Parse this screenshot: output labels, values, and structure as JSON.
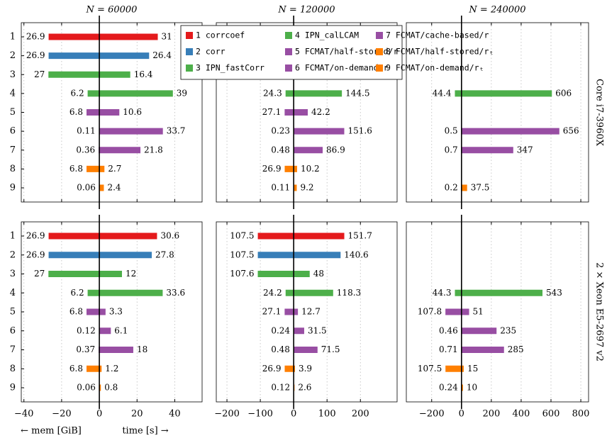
{
  "chart_data": [
    {
      "type": "bar",
      "title": "N = 60000",
      "categories": [
        "1",
        "2",
        "3",
        "4",
        "5",
        "6",
        "7",
        "8",
        "9"
      ],
      "series": [
        {
          "values": [
            -26.9,
            -26.9,
            -27,
            -6.2,
            -6.8,
            -0.11,
            -0.36,
            -6.8,
            -0.06
          ],
          "value_labels": [
            "26.9",
            "26.9",
            "27",
            "6.2",
            "6.8",
            "0.11",
            "0.36",
            "6.8",
            "0.06"
          ]
        },
        {
          "values": [
            31,
            26.4,
            16.4,
            39,
            10.6,
            33.7,
            21.8,
            2.7,
            2.4
          ]
        }
      ],
      "xlim": [
        -41.4,
        54.5
      ],
      "xticks": [
        -40,
        -20,
        0,
        20,
        40
      ]
    },
    {
      "type": "bar",
      "title": "N = 120000",
      "series": [
        {
          "values": [
            null,
            null,
            null,
            -24.3,
            -27.1,
            -0.23,
            -0.48,
            -26.9,
            -0.11
          ],
          "value_labels": [
            null,
            null,
            null,
            "24.3",
            "27.1",
            "0.23",
            "0.48",
            "26.9",
            "0.11"
          ]
        },
        {
          "values": [
            null,
            null,
            null,
            144.5,
            42.2,
            151.6,
            86.9,
            10.2,
            9.2
          ]
        }
      ],
      "xlim": [
        -232,
        310
      ],
      "xticks": [
        -200,
        -100,
        0,
        100,
        200
      ]
    },
    {
      "type": "bar",
      "title": "N = 240000",
      "row_label": "Core i7-3960X",
      "series": [
        {
          "values": [
            null,
            null,
            null,
            -44.4,
            null,
            -0.5,
            -0.7,
            null,
            -0.2
          ],
          "value_labels": [
            null,
            null,
            null,
            "44.4",
            null,
            "0.5",
            "0.7",
            null,
            "0.2"
          ]
        },
        {
          "values": [
            null,
            null,
            null,
            606,
            null,
            656,
            347,
            null,
            37.5
          ]
        }
      ],
      "xlim": [
        -370,
        852
      ],
      "xticks": [
        -200,
        0,
        200,
        400,
        600,
        800
      ]
    },
    {
      "type": "bar",
      "categories": [
        "1",
        "2",
        "3",
        "4",
        "5",
        "6",
        "7",
        "8",
        "9"
      ],
      "series": [
        {
          "values": [
            -26.9,
            -26.9,
            -27,
            -6.2,
            -6.8,
            -0.12,
            -0.37,
            -6.8,
            -0.06
          ],
          "value_labels": [
            "26.9",
            "26.9",
            "27",
            "6.2",
            "6.8",
            "0.12",
            "0.37",
            "6.8",
            "0.06"
          ]
        },
        {
          "values": [
            30.6,
            27.8,
            12,
            33.6,
            3.3,
            6.1,
            18,
            1.2,
            0.8
          ]
        }
      ],
      "xlim": [
        -41.4,
        54.5
      ],
      "xticks": [
        {
          "value": -40,
          "label": "−40"
        },
        {
          "value": -20,
          "label": "−20"
        },
        0,
        20,
        40
      ]
    },
    {
      "type": "bar",
      "series": [
        {
          "values": [
            -107.5,
            -107.5,
            -107.6,
            -24.2,
            -27.1,
            -0.24,
            -0.48,
            -26.9,
            -0.12
          ],
          "value_labels": [
            "107.5",
            "107.5",
            "107.6",
            "24.2",
            "27.1",
            "0.24",
            "0.48",
            "26.9",
            "0.12"
          ]
        },
        {
          "values": [
            151.7,
            140.6,
            48,
            118.3,
            12.7,
            31.5,
            71.5,
            3.9,
            2.6
          ]
        }
      ],
      "xlim": [
        -232,
        310
      ],
      "xticks": [
        {
          "value": -200,
          "label": "−200"
        },
        {
          "value": -100,
          "label": "−100"
        },
        0,
        100,
        200
      ]
    },
    {
      "type": "bar",
      "row_label": "2 × Xeon E5-2697 v2",
      "series": [
        {
          "values": [
            null,
            null,
            null,
            -44.3,
            -107.8,
            -0.46,
            -0.71,
            -107.5,
            -0.24
          ],
          "value_labels": [
            null,
            null,
            null,
            "44.3",
            "107.8",
            "0.46",
            "0.71",
            "107.5",
            "0.24"
          ]
        },
        {
          "values": [
            null,
            null,
            null,
            543,
            51,
            235,
            285,
            15,
            10
          ]
        }
      ],
      "xlim": [
        -370,
        852
      ],
      "xticks": [
        {
          "value": -200,
          "label": "−200"
        },
        0,
        200,
        400,
        600,
        800
      ]
    }
  ],
  "legend": [
    {
      "name": "1 corrcoef",
      "color": "#e41a1c"
    },
    {
      "name": "2 corr",
      "color": "#377eb8"
    },
    {
      "name": "3 IPN_fastCorr",
      "color": "#4daf4a"
    },
    {
      "name": "4 IPN_calLCAM",
      "color": "#4daf4a"
    },
    {
      "name": "5 FCMAT/half-stored/r",
      "color": "#984ea3"
    },
    {
      "name": "6 FCMAT/on-demand/r",
      "color": "#984ea3"
    },
    {
      "name": "7 FCMAT/cache-based/r",
      "color": "#984ea3"
    },
    {
      "name": "8 FCMAT/half-stored/rₜ",
      "color": "#ff7f00"
    },
    {
      "name": "9 FCMAT/on-demand/rₜ",
      "color": "#ff7f00"
    }
  ],
  "xlabels": [
    "← mem [GiB]",
    "time [s] →"
  ]
}
